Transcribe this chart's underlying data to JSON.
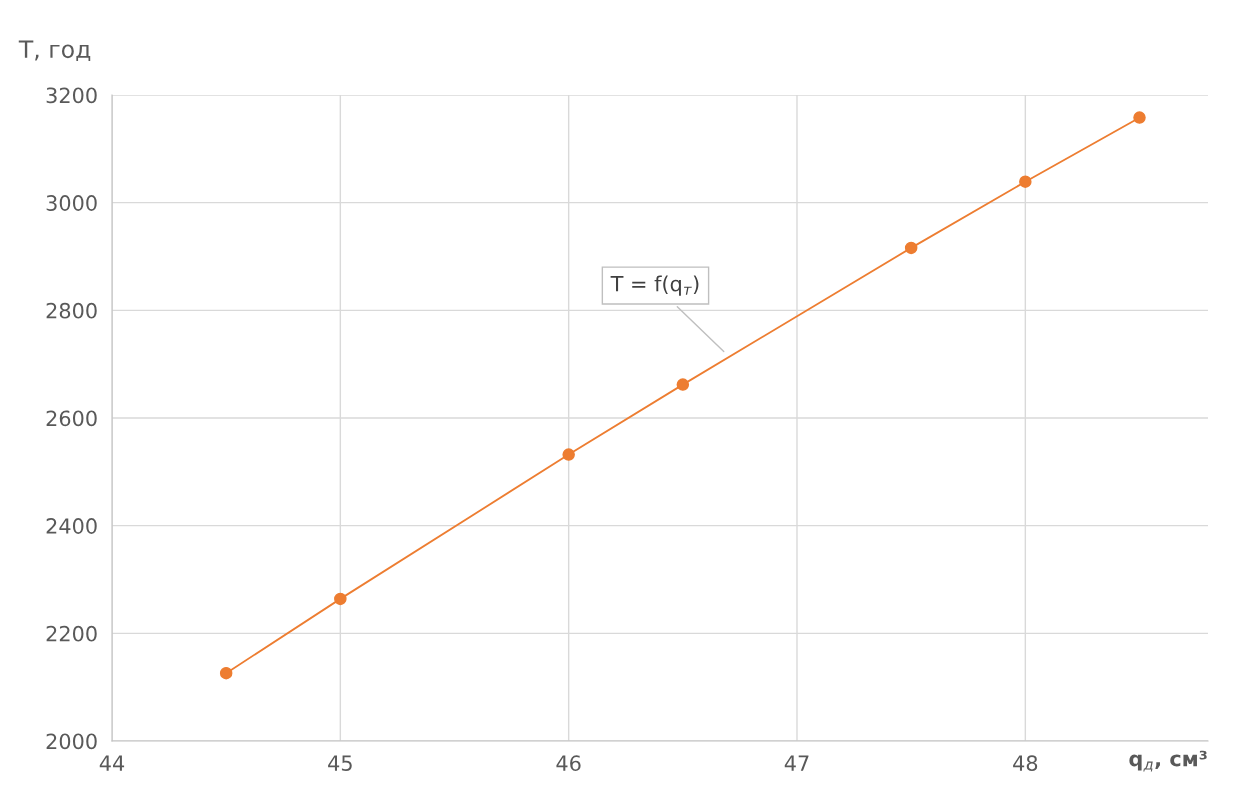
{
  "chart_data": {
    "type": "line",
    "xlabel": "q$_{д}$, см³",
    "ylabel": "T, год",
    "x": [
      44.5,
      45,
      46,
      46.5,
      47.5,
      48,
      48.5
    ],
    "series": [
      {
        "color": "#ed7d31",
        "values": [
          2126,
          2264,
          2532,
          2662,
          2916,
          3039,
          3158
        ]
      }
    ],
    "line_style": "solid",
    "marker": "circle",
    "xlim": [
      44,
      48.8
    ],
    "xticks": [
      44,
      45,
      46,
      47,
      48
    ],
    "ylim": [
      2000,
      3200
    ],
    "yticks": [
      2000,
      2200,
      2400,
      2600,
      2800,
      3000,
      3200
    ],
    "grid": true,
    "annotations": [
      "T = f(q$_{т}$)"
    ]
  }
}
